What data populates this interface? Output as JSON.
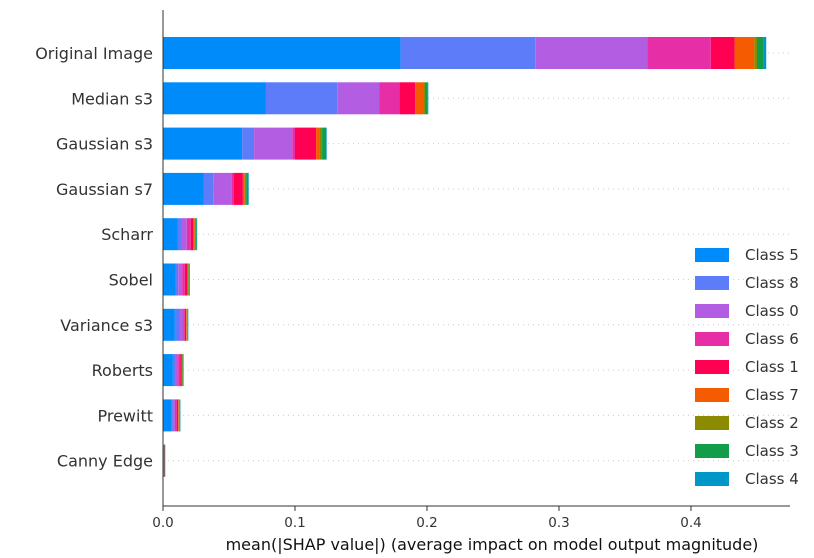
{
  "chart_data": {
    "type": "bar",
    "orientation": "horizontal",
    "stacked": true,
    "xlabel": "mean(|SHAP value|) (average impact on model output magnitude)",
    "xlim": [
      0,
      0.475
    ],
    "xticks": [
      "0.0",
      "0.1",
      "0.2",
      "0.3",
      "0.4"
    ],
    "categories": [
      "Original Image",
      "Median s3",
      "Gaussian s3",
      "Gaussian s7",
      "Scharr",
      "Sobel",
      "Variance s3",
      "Roberts",
      "Prewitt",
      "Canny Edge"
    ],
    "legend_position": "lower-right",
    "series": [
      {
        "name": "Class 5",
        "color": "#008bfb",
        "values": [
          0.18,
          0.078,
          0.06,
          0.031,
          0.011,
          0.0095,
          0.009,
          0.0075,
          0.0065,
          0.0003
        ]
      },
      {
        "name": "Class 8",
        "color": "#5c7cfa",
        "values": [
          0.102,
          0.054,
          0.009,
          0.007,
          0.003,
          0.002,
          0.0035,
          0.002,
          0.001,
          0.0002
        ]
      },
      {
        "name": "Class 0",
        "color": "#b35ee2",
        "values": [
          0.085,
          0.032,
          0.029,
          0.014,
          0.004,
          0.003,
          0.003,
          0.002,
          0.0015,
          0.0002
        ]
      },
      {
        "name": "Class 6",
        "color": "#e62ea6",
        "values": [
          0.048,
          0.015,
          0.002,
          0.0015,
          0.003,
          0.002,
          0.001,
          0.0015,
          0.0015,
          0.0002
        ]
      },
      {
        "name": "Class 1",
        "color": "#ff0052",
        "values": [
          0.018,
          0.012,
          0.016,
          0.007,
          0.002,
          0.002,
          0.001,
          0.001,
          0.001,
          0.0001
        ]
      },
      {
        "name": "Class 7",
        "color": "#f55b00",
        "values": [
          0.015,
          0.006,
          0.0025,
          0.0015,
          0.001,
          0.0005,
          0.0005,
          0.0005,
          0.0005,
          0.0001
        ]
      },
      {
        "name": "Class 2",
        "color": "#8b8b00",
        "values": [
          0.002,
          0.0015,
          0.002,
          0.001,
          0.0005,
          0.0005,
          0.0003,
          0.0003,
          0.0003,
          0.0001
        ]
      },
      {
        "name": "Class 3",
        "color": "#139d4a",
        "values": [
          0.005,
          0.002,
          0.003,
          0.0015,
          0.001,
          0.0005,
          0.0005,
          0.0005,
          0.0005,
          0.0001
        ]
      },
      {
        "name": "Class 4",
        "color": "#0096c7",
        "values": [
          0.002,
          0.0005,
          0.0005,
          0.0005,
          0.0003,
          0.0002,
          0.0002,
          0.0002,
          0.0002,
          0.0001
        ]
      }
    ]
  }
}
